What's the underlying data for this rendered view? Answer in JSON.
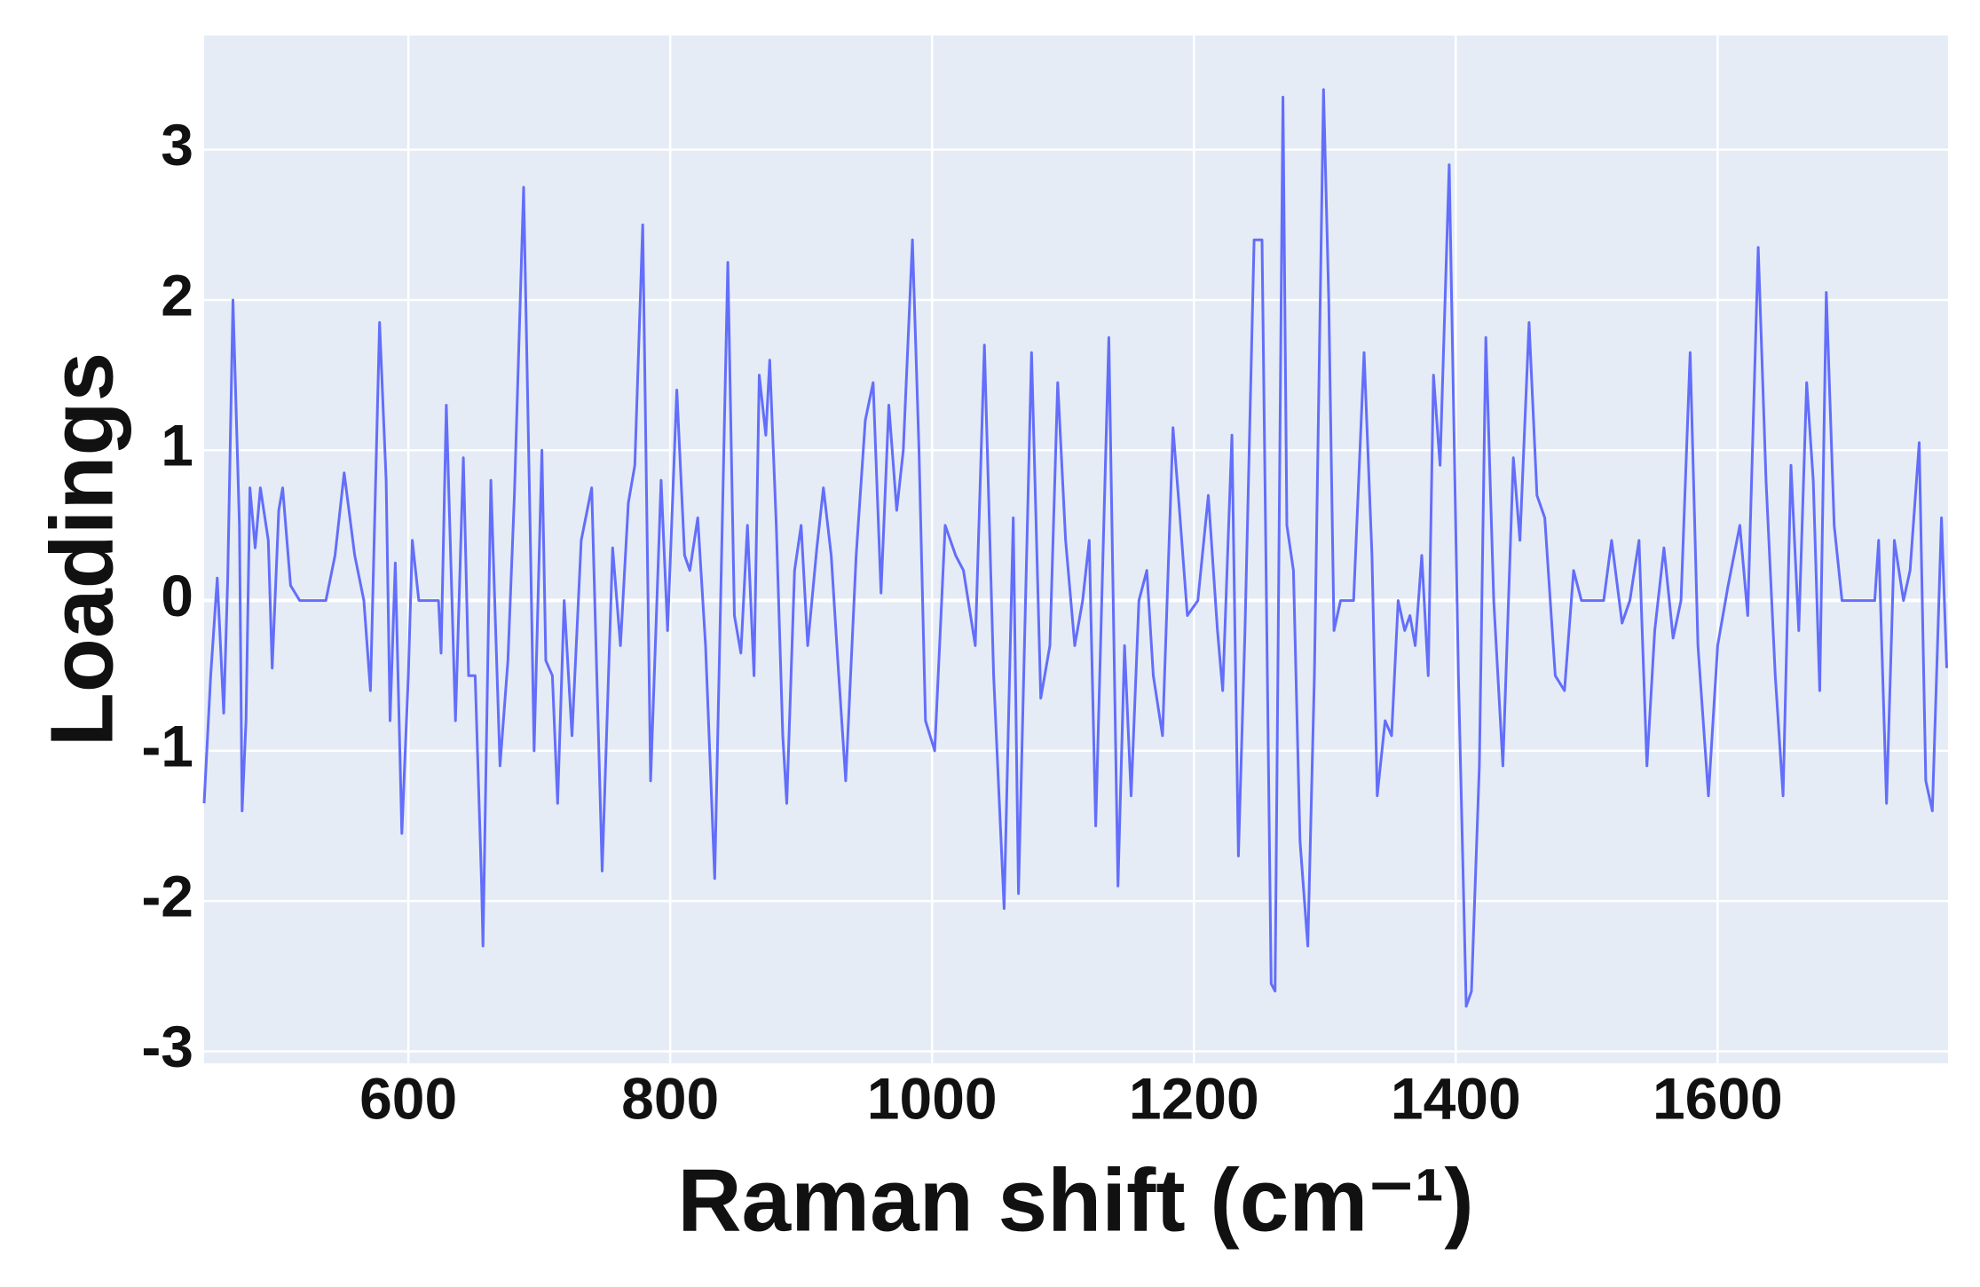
{
  "chart_data": {
    "type": "line",
    "x_label": "Raman shift (cm⁻¹)",
    "y_label": "Loadings",
    "xlim": [
      444,
      1776
    ],
    "ylim": [
      -3.08,
      3.76
    ],
    "xticks": [
      600,
      800,
      1000,
      1200,
      1400,
      1600
    ],
    "yticks": [
      -3,
      -2,
      -1,
      0,
      1,
      2,
      3
    ],
    "grid": true,
    "background": "#e5ecf6",
    "series": [
      {
        "color": "#636efa",
        "x": [
          444,
          449,
          454,
          459,
          462,
          466,
          471,
          473,
          476,
          479,
          483,
          487,
          493,
          496,
          501,
          504,
          510,
          517,
          537,
          544,
          551,
          559,
          566,
          571,
          578,
          583,
          586,
          590,
          595,
          600,
          603,
          608,
          623,
          625,
          629,
          636,
          642,
          646,
          651,
          656,
          657,
          663,
          670,
          676,
          681,
          688,
          693,
          696,
          702,
          705,
          710,
          714,
          719,
          725,
          732,
          740,
          748,
          756,
          762,
          768,
          773,
          779,
          785,
          793,
          798,
          805,
          811,
          815,
          821,
          827,
          834,
          844,
          849,
          854,
          859,
          864,
          868,
          873,
          876,
          881,
          886,
          889,
          895,
          900,
          905,
          912,
          917,
          923,
          928,
          934,
          942,
          949,
          955,
          961,
          967,
          973,
          978,
          985,
          990,
          995,
          1002,
          1010,
          1018,
          1024,
          1033,
          1040,
          1047,
          1055,
          1062,
          1066,
          1070,
          1076,
          1083,
          1090,
          1096,
          1102,
          1109,
          1115,
          1120,
          1125,
          1135,
          1142,
          1147,
          1152,
          1158,
          1164,
          1169,
          1176,
          1184,
          1189,
          1195,
          1203,
          1211,
          1218,
          1222,
          1229,
          1234,
          1239,
          1246,
          1252,
          1259,
          1262,
          1268,
          1271,
          1276,
          1281,
          1287,
          1292,
          1299,
          1303,
          1307,
          1312,
          1322,
          1330,
          1336,
          1340,
          1346,
          1351,
          1356,
          1361,
          1365,
          1369,
          1374,
          1379,
          1383,
          1388,
          1395,
          1402,
          1408,
          1412,
          1418,
          1423,
          1429,
          1436,
          1444,
          1449,
          1456,
          1462,
          1468,
          1476,
          1483,
          1490,
          1496,
          1513,
          1519,
          1527,
          1533,
          1540,
          1546,
          1552,
          1559,
          1566,
          1572,
          1579,
          1585,
          1593,
          1600,
          1608,
          1617,
          1623,
          1631,
          1637,
          1644,
          1650,
          1656,
          1662,
          1668,
          1673,
          1678,
          1683,
          1689,
          1695,
          1720,
          1723,
          1729,
          1735,
          1742,
          1747,
          1754,
          1759,
          1764,
          1771,
          1775
        ],
        "values": [
          -1.35,
          -0.5,
          0.15,
          -0.75,
          0.15,
          2.0,
          0.5,
          -1.4,
          -0.8,
          0.75,
          0.35,
          0.75,
          0.4,
          -0.45,
          0.6,
          0.75,
          0.1,
          0,
          0,
          0.3,
          0.85,
          0.3,
          0,
          -0.6,
          1.85,
          0.8,
          -0.8,
          0.25,
          -1.55,
          -0.5,
          0.4,
          0,
          0,
          -0.35,
          1.3,
          -0.8,
          0.95,
          -0.5,
          -0.5,
          -1.9,
          -2.3,
          0.8,
          -1.1,
          -0.4,
          0.7,
          2.75,
          0.5,
          -1.0,
          1.0,
          -0.4,
          -0.5,
          -1.35,
          0,
          -0.9,
          0.4,
          0.75,
          -1.8,
          0.35,
          -0.3,
          0.65,
          0.9,
          2.5,
          -1.2,
          0.8,
          -0.2,
          1.4,
          0.3,
          0.2,
          0.55,
          -0.3,
          -1.85,
          2.25,
          -0.1,
          -0.35,
          0.5,
          -0.5,
          1.5,
          1.1,
          1.6,
          0.5,
          -0.9,
          -1.35,
          0.2,
          0.5,
          -0.3,
          0.35,
          0.75,
          0.3,
          -0.4,
          -1.2,
          0.3,
          1.2,
          1.45,
          0.05,
          1.3,
          0.6,
          1.0,
          2.4,
          1.0,
          -0.8,
          -1.0,
          0.5,
          0.3,
          0.2,
          -0.3,
          1.7,
          -0.5,
          -2.05,
          0.55,
          -1.95,
          -0.5,
          1.65,
          -0.65,
          -0.3,
          1.45,
          0.4,
          -0.3,
          0.0,
          0.4,
          -1.5,
          1.75,
          -1.9,
          -0.3,
          -1.3,
          0.0,
          0.2,
          -0.5,
          -0.9,
          1.15,
          0.6,
          -0.1,
          0.0,
          0.7,
          -0.2,
          -0.6,
          1.1,
          -1.7,
          -0.2,
          2.4,
          2.4,
          -2.55,
          -2.6,
          3.35,
          0.5,
          0.2,
          -1.6,
          -2.3,
          -0.5,
          3.4,
          2.0,
          -0.2,
          0,
          0,
          1.65,
          0.3,
          -1.3,
          -0.8,
          -0.9,
          0,
          -0.2,
          -0.1,
          -0.3,
          0.3,
          -0.5,
          1.5,
          0.9,
          2.9,
          -0.5,
          -2.7,
          -2.6,
          -1.1,
          1.75,
          0.0,
          -1.1,
          0.95,
          0.4,
          1.85,
          0.7,
          0.55,
          -0.5,
          -0.6,
          0.2,
          0,
          0,
          0.4,
          -0.15,
          0,
          0.4,
          -1.1,
          -0.2,
          0.35,
          -0.25,
          0.0,
          1.65,
          -0.3,
          -1.3,
          -0.3,
          0.1,
          0.5,
          -0.1,
          2.35,
          0.8,
          -0.5,
          -1.3,
          0.9,
          -0.2,
          1.45,
          0.8,
          -0.6,
          2.05,
          0.5,
          0,
          0,
          0.4,
          -1.35,
          0.4,
          0.0,
          0.2,
          1.05,
          -1.2,
          -1.4,
          0.55,
          -0.45
        ]
      }
    ]
  }
}
